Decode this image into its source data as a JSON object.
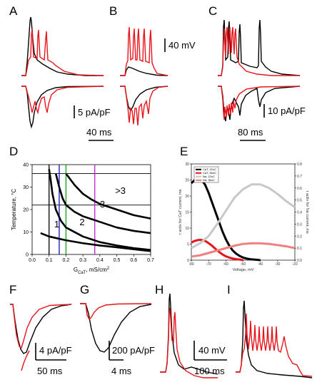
{
  "panel_labels": {
    "A": "A",
    "B": "B",
    "C": "C",
    "D": "D",
    "E": "E",
    "F": "F",
    "G": "G",
    "H": "H",
    "I": "I"
  },
  "scale_bars": {
    "ab_voltage": "40 mV",
    "ab_current": "5 pA/pF",
    "ab_time": "40 ms",
    "c_current": "10 pA/pF",
    "c_time": "80 ms",
    "f_current": "4 pA/pF",
    "f_time": "50 ms",
    "g_current": "200 pA/pF",
    "g_time": "4 ms",
    "h_voltage": "40 mV",
    "h_time": "100 ms"
  },
  "colors": {
    "black_trace": "#000000",
    "red_trace": "#e8141b",
    "light_gray": "#c8c8c8",
    "pink": "#f08080",
    "blue": "#1010c8",
    "green": "#10a010",
    "magenta": "#c020c8"
  },
  "chart_data": [
    {
      "panel": "D",
      "type": "line",
      "xlabel_main": "G",
      "xlabel_sub": "CaT",
      "xlabel_rest": ", mS/cm",
      "xlabel_sup": "2",
      "ylabel": "Temperature, °C",
      "xlim": [
        0.0,
        0.7
      ],
      "ylim": [
        0,
        40
      ],
      "xticks": [
        "0.0",
        "0.1",
        "0.2",
        "0.3",
        "0.4",
        "0.5",
        "0.6",
        "0.7"
      ],
      "yticks": [
        "0",
        "10",
        "20",
        "30",
        "40"
      ],
      "hlines": [
        22,
        36
      ],
      "vlines": [
        {
          "x": 0.1,
          "color": "black"
        },
        {
          "x": 0.16,
          "color": "blue"
        },
        {
          "x": 0.2,
          "color": "green"
        },
        {
          "x": 0.37,
          "color": "magenta"
        }
      ],
      "region_labels": [
        {
          "text": "1",
          "x": 0.13,
          "y": 12
        },
        {
          "text": "2",
          "x": 0.28,
          "y": 13
        },
        {
          "text": "3",
          "x": 0.4,
          "y": 21
        },
        {
          "text": ">3",
          "x": 0.49,
          "y": 27
        }
      ],
      "series": [
        {
          "x": [
            0.05,
            0.1,
            0.2,
            0.3,
            0.4,
            0.5,
            0.6,
            0.7
          ],
          "y": [
            9.5,
            8,
            6.3,
            5,
            4,
            3.2,
            2.3,
            1.5
          ]
        },
        {
          "x": [
            0.1,
            0.11,
            0.12,
            0.14,
            0.17,
            0.2,
            0.3,
            0.4,
            0.5,
            0.6,
            0.7
          ],
          "y": [
            38,
            33,
            27,
            20,
            15,
            12,
            8,
            5.5,
            4,
            2.8,
            2
          ]
        },
        {
          "x": [
            0.14,
            0.16,
            0.18,
            0.2,
            0.25,
            0.3,
            0.4,
            0.5,
            0.6,
            0.7
          ],
          "y": [
            36,
            30,
            25,
            22,
            19,
            17,
            14.5,
            12,
            10.5,
            9.5
          ]
        },
        {
          "x": [
            0.2,
            0.25,
            0.3,
            0.35,
            0.4,
            0.5,
            0.6,
            0.7
          ],
          "y": [
            36,
            31,
            27,
            24.5,
            22.5,
            20,
            17.5,
            16
          ]
        }
      ]
    },
    {
      "panel": "E",
      "type": "line",
      "xlabel": "Voltage, mV",
      "ylabel_left": "τ activ for CaT current, ms",
      "ylabel_right": "τ activ for Na current, ms",
      "xlim": [
        -80,
        -20
      ],
      "ylim_left": [
        0,
        30
      ],
      "ylim_right": [
        0.0,
        0.8
      ],
      "xticks": [
        "-80",
        "-70",
        "-60",
        "-50",
        "-40",
        "-30",
        "-20"
      ],
      "yticks_left": [
        "0",
        "5",
        "10",
        "15",
        "20",
        "25",
        "30"
      ],
      "yticks_right": [
        "0.0",
        "0.1",
        "0.2",
        "0.3",
        "0.4",
        "0.5",
        "0.6",
        "0.7",
        "0.8"
      ],
      "series": [
        {
          "name": "CaT, 22oC",
          "color": "#000000",
          "axis": "left",
          "x": [
            -80,
            -78,
            -76,
            -74,
            -72,
            -70,
            -68,
            -66,
            -64,
            -62,
            -60,
            -58,
            -56,
            -54,
            -52,
            -50,
            -48,
            -46,
            -44,
            -42,
            -40
          ],
          "y": [
            24,
            25,
            25.5,
            25,
            23.5,
            21,
            18,
            15,
            12,
            9,
            6.5,
            4.5,
            3,
            2,
            1.3,
            0.8,
            0.5,
            0.3,
            0.2,
            0.1,
            0
          ]
        },
        {
          "name": "CaT, 36oC",
          "color": "#e8141b",
          "axis": "left",
          "x": [
            -80,
            -78,
            -76,
            -74,
            -72,
            -70,
            -68,
            -66,
            -64,
            -62,
            -60,
            -58,
            -56,
            -54,
            -52,
            -50
          ],
          "y": [
            5.5,
            6,
            6.3,
            6.3,
            6,
            5.3,
            4.5,
            3.5,
            2.6,
            1.8,
            1.2,
            0.8,
            0.5,
            0.3,
            0.2,
            0
          ]
        },
        {
          "name": "Na, 22oC",
          "color": "#c8c8c8",
          "axis": "right",
          "x": [
            -80,
            -75,
            -70,
            -65,
            -60,
            -55,
            -50,
            -45,
            -40,
            -35,
            -30,
            -25,
            -20
          ],
          "y": [
            0.1,
            0.14,
            0.2,
            0.3,
            0.41,
            0.52,
            0.59,
            0.63,
            0.63,
            0.6,
            0.55,
            0.49,
            0.44
          ]
        },
        {
          "name": "Na, 36oC",
          "color": "#f08080",
          "axis": "right",
          "x": [
            -80,
            -75,
            -70,
            -65,
            -60,
            -55,
            -50,
            -45,
            -40,
            -35,
            -30,
            -25,
            -20
          ],
          "y": [
            0.03,
            0.04,
            0.06,
            0.08,
            0.1,
            0.12,
            0.135,
            0.14,
            0.14,
            0.135,
            0.125,
            0.115,
            0.1
          ]
        }
      ]
    }
  ]
}
